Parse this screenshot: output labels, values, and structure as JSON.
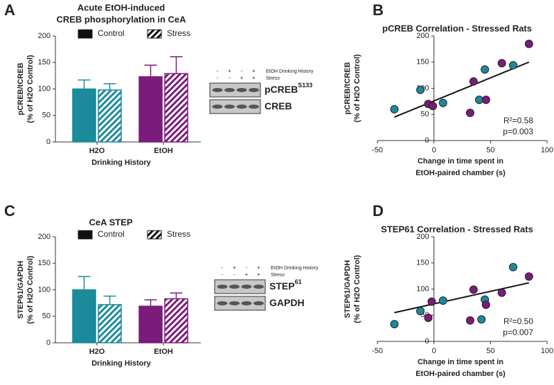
{
  "chart_data": [
    {
      "type": "bar",
      "panel_label": "A",
      "title": [
        "Acute EtOH-induced",
        "CREB phosphorylation in  CeA"
      ],
      "ylabel": [
        "pCREB/tCREB",
        "(% of H2O Control)"
      ],
      "xlabel": "Drinking History",
      "categories": [
        "H2O",
        "EtOH"
      ],
      "category_colors": [
        "#1b8a9b",
        "#7b1b7b"
      ],
      "series": [
        {
          "name": "Control",
          "color": "#111111",
          "pattern": "solid",
          "values": [
            100,
            123
          ],
          "errors": [
            17,
            22
          ]
        },
        {
          "name": "Stress",
          "color": "#111111",
          "pattern": "hatched",
          "values": [
            98,
            129
          ],
          "errors": [
            12,
            32
          ]
        }
      ],
      "ylim": [
        0,
        200
      ],
      "yticks": [
        0,
        50,
        100,
        150,
        200
      ],
      "blot": {
        "row_labels": [
          "EtOH Drinking History",
          "Stress"
        ],
        "signs": [
          [
            "-",
            "+",
            "-",
            "+"
          ],
          [
            "-",
            "-",
            "+",
            "+"
          ]
        ],
        "bands": [
          {
            "name": "pCREB",
            "superscript": "S133"
          },
          {
            "name": "CREB"
          }
        ]
      }
    },
    {
      "type": "scatter",
      "panel_label": "B",
      "title": "pCREB Correlation - Stressed Rats",
      "ylabel": [
        "pCREB/tCREB",
        "(% of H2O Control)"
      ],
      "xlabel": [
        "Change in time spent in",
        "EtOH-paired chamber (s)"
      ],
      "series": [
        {
          "color": "#1b8a9b",
          "x": [
            -35,
            -12,
            8,
            40,
            45,
            70
          ],
          "values": [
            60,
            97,
            72,
            78,
            136,
            144
          ]
        },
        {
          "color": "#7b1b7b",
          "x": [
            -5,
            -1,
            32,
            35,
            46,
            60,
            84
          ],
          "values": [
            70,
            66,
            53,
            113,
            78,
            148,
            185
          ]
        }
      ],
      "fit_line": {
        "x": [
          -35,
          84
        ],
        "values": [
          45,
          150
        ]
      },
      "annotations": [
        "R²=0.58",
        "p=0.003"
      ],
      "xlim": [
        -50,
        100
      ],
      "xticks": [
        -50,
        0,
        50,
        100
      ],
      "ylim": [
        0,
        200
      ],
      "yticks": [
        0,
        50,
        100,
        150,
        200
      ]
    },
    {
      "type": "bar",
      "panel_label": "C",
      "title": [
        "CeA STEP"
      ],
      "ylabel": [
        "STEP61/GAPDH",
        "(% of H2O Control)"
      ],
      "xlabel": "Drinking History",
      "categories": [
        "H2O",
        "EtOH"
      ],
      "category_colors": [
        "#1b8a9b",
        "#7b1b7b"
      ],
      "series": [
        {
          "name": "Control",
          "color": "#111111",
          "pattern": "solid",
          "values": [
            100,
            69
          ],
          "errors": [
            25,
            12
          ]
        },
        {
          "name": "Stress",
          "color": "#111111",
          "pattern": "hatched",
          "values": [
            72,
            83
          ],
          "errors": [
            16,
            11
          ]
        }
      ],
      "ylim": [
        0,
        200
      ],
      "yticks": [
        0,
        50,
        100,
        150,
        200
      ],
      "blot": {
        "row_labels": [
          "EtOH Drinking History",
          "Stress"
        ],
        "signs": [
          [
            "-",
            "+",
            "-",
            "+"
          ],
          [
            "-",
            "-",
            "+",
            "+"
          ]
        ],
        "bands": [
          {
            "name": "STEP",
            "superscript": "61"
          },
          {
            "name": "GAPDH"
          }
        ]
      }
    },
    {
      "type": "scatter",
      "panel_label": "D",
      "title": "STEP61 Correlation - Stressed Rats",
      "ylabel": [
        "STEP61/GAPDH",
        "(% of H2O Control)"
      ],
      "xlabel": [
        "Change in time spent in",
        "EtOH-paired chamber (s)"
      ],
      "series": [
        {
          "color": "#1b8a9b",
          "x": [
            -35,
            -12,
            8,
            45,
            42,
            70
          ],
          "values": [
            33,
            58,
            78,
            80,
            42,
            142
          ]
        },
        {
          "color": "#7b1b7b",
          "x": [
            -5,
            -2,
            32,
            35,
            46,
            60,
            84
          ],
          "values": [
            45,
            76,
            40,
            99,
            70,
            93,
            124
          ]
        }
      ],
      "fit_line": {
        "x": [
          -35,
          84
        ],
        "values": [
          55,
          112
        ]
      },
      "annotations": [
        "R²=0.50",
        "p=0.007"
      ],
      "xlim": [
        -50,
        100
      ],
      "xticks": [
        -50,
        0,
        50,
        100
      ],
      "ylim": [
        0,
        200
      ],
      "yticks": [
        0,
        50,
        100,
        150,
        200
      ]
    }
  ]
}
